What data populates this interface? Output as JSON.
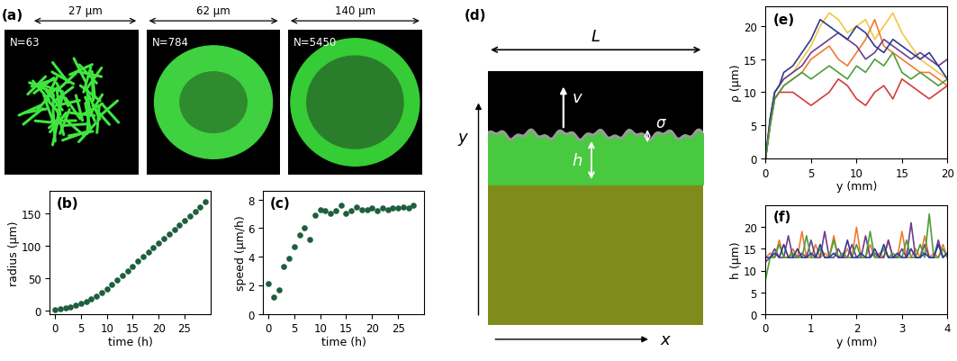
{
  "images": {
    "panel": "(a)",
    "items": [
      {
        "width_label": "27 µm",
        "count_label": "N=63"
      },
      {
        "width_label": "62 µm",
        "count_label": "N=784"
      },
      {
        "width_label": "140 µm",
        "count_label": "N=5450"
      }
    ]
  },
  "diagram": {
    "panel": "(d)",
    "labels": {
      "width": "L",
      "velocity": "v",
      "roughness": "σ",
      "thickness": "h",
      "vertical": "y",
      "horizontal": "x"
    }
  },
  "chart_data": [
    {
      "type": "scatter",
      "panel": "(b)",
      "xlabel": "time (h)",
      "ylabel": "radius (µm)",
      "color": "#1d5e3c",
      "x": [
        0,
        1,
        2,
        3,
        4,
        5,
        6,
        7,
        8,
        9,
        10,
        11,
        12,
        13,
        14,
        15,
        16,
        17,
        18,
        19,
        20,
        21,
        22,
        23,
        24,
        25,
        26,
        27,
        28,
        29
      ],
      "values": [
        2,
        3,
        4,
        6,
        8,
        11,
        14,
        18,
        23,
        28,
        34,
        41,
        48,
        55,
        62,
        69,
        76,
        83,
        90,
        97,
        104,
        111,
        118,
        125,
        132,
        139,
        146,
        153,
        160,
        168
      ],
      "xlim": [
        -1,
        30
      ],
      "xticks": [
        0,
        5,
        10,
        15,
        20,
        25
      ],
      "ylim": [
        -5,
        185
      ],
      "yticks": [
        0,
        50,
        100,
        150
      ]
    },
    {
      "type": "scatter",
      "panel": "(c)",
      "xlabel": "time (h)",
      "ylabel": "speed (µm/h)",
      "color": "#1d5e3c",
      "x": [
        0,
        1,
        2,
        3,
        4,
        5,
        6,
        7,
        8,
        9,
        10,
        11,
        12,
        13,
        14,
        15,
        16,
        17,
        18,
        19,
        20,
        21,
        22,
        23,
        24,
        25,
        26,
        27,
        28
      ],
      "values": [
        2.1,
        1.2,
        1.7,
        3.3,
        3.9,
        4.7,
        5.5,
        6.0,
        5.2,
        6.9,
        7.3,
        7.2,
        7.0,
        7.2,
        7.6,
        7.0,
        7.2,
        7.5,
        7.3,
        7.3,
        7.4,
        7.2,
        7.4,
        7.3,
        7.4,
        7.4,
        7.5,
        7.4,
        7.6
      ],
      "xlim": [
        -1,
        30
      ],
      "xticks": [
        0,
        5,
        10,
        15,
        20,
        25
      ],
      "ylim": [
        0,
        8.6
      ],
      "yticks": [
        0,
        2,
        4,
        6,
        8
      ]
    },
    {
      "type": "line",
      "panel": "(e)",
      "xlabel": "y (mm)",
      "ylabel": "ρ (µm)",
      "x": [
        0,
        0.5,
        1,
        1.5,
        2,
        3,
        4,
        5,
        6,
        7,
        8,
        9,
        10,
        11,
        12,
        13,
        14,
        15,
        16,
        17,
        18,
        19,
        20
      ],
      "series": [
        {
          "color": "#f2c744",
          "values": [
            0,
            6,
            10,
            11,
            12,
            13,
            15,
            17,
            20,
            22,
            21,
            19,
            20,
            21,
            18,
            20,
            22,
            19,
            17,
            15,
            14,
            13,
            12
          ]
        },
        {
          "color": "#ee7d2f",
          "values": [
            0,
            5,
            9,
            10,
            11,
            12,
            13,
            15,
            16,
            17,
            15,
            14,
            16,
            18,
            21,
            17,
            16,
            15,
            14,
            13,
            13,
            12,
            11
          ]
        },
        {
          "color": "#d63a3a",
          "values": [
            0,
            5,
            9,
            10,
            10,
            10,
            9,
            8,
            9,
            10,
            12,
            11,
            9,
            8,
            10,
            11,
            9,
            12,
            11,
            10,
            9,
            10,
            11
          ]
        },
        {
          "color": "#6b3f8f",
          "values": [
            0,
            6,
            10,
            11,
            12,
            13,
            14,
            16,
            17,
            18,
            19,
            18,
            17,
            15,
            16,
            18,
            17,
            16,
            15,
            16,
            15,
            14,
            15
          ]
        },
        {
          "color": "#2e3c8f",
          "values": [
            0,
            6,
            10,
            11,
            13,
            14,
            16,
            18,
            21,
            20,
            19,
            18,
            20,
            19,
            17,
            16,
            18,
            17,
            16,
            15,
            16,
            14,
            12
          ]
        },
        {
          "color": "#4d9e3a",
          "values": [
            0,
            5,
            9,
            10,
            11,
            12,
            13,
            12,
            13,
            14,
            13,
            12,
            14,
            13,
            15,
            14,
            16,
            13,
            12,
            13,
            12,
            11,
            12
          ]
        }
      ],
      "xlim": [
        0,
        20
      ],
      "xticks": [
        0,
        5,
        10,
        15,
        20
      ],
      "ylim": [
        0,
        23
      ],
      "yticks": [
        0,
        5,
        10,
        15,
        20
      ]
    },
    {
      "type": "line",
      "panel": "(f)",
      "xlabel": "y (mm)",
      "ylabel": "h (µm)",
      "x": [
        0,
        0.1,
        0.2,
        0.3,
        0.4,
        0.5,
        0.6,
        0.7,
        0.8,
        0.9,
        1,
        1.1,
        1.2,
        1.3,
        1.4,
        1.5,
        1.6,
        1.7,
        1.8,
        1.9,
        2,
        2.1,
        2.2,
        2.3,
        2.4,
        2.5,
        2.6,
        2.7,
        2.8,
        2.9,
        3,
        3.1,
        3.2,
        3.3,
        3.4,
        3.5,
        3.6,
        3.7,
        3.8,
        3.9,
        4
      ],
      "series": [
        {
          "color": "#ee7d2f",
          "values": [
            13,
            14,
            13,
            17,
            13,
            13,
            15,
            13,
            19,
            13,
            13,
            16,
            13,
            14,
            13,
            18,
            13,
            13,
            15,
            13,
            20,
            13,
            13,
            16,
            13,
            14,
            13,
            17,
            13,
            13,
            19,
            13,
            13,
            15,
            13,
            18,
            13,
            14,
            13,
            16,
            13
          ]
        },
        {
          "color": "#6b3f8f",
          "values": [
            12,
            13,
            15,
            13,
            13,
            18,
            13,
            13,
            14,
            13,
            17,
            13,
            13,
            19,
            13,
            13,
            15,
            13,
            13,
            16,
            13,
            13,
            18,
            13,
            14,
            13,
            13,
            17,
            13,
            13,
            15,
            13,
            21,
            13,
            13,
            16,
            13,
            13,
            17,
            13,
            14
          ]
        },
        {
          "color": "#4d9e3a",
          "values": [
            8,
            13,
            13,
            16,
            13,
            13,
            14,
            13,
            13,
            18,
            13,
            13,
            15,
            13,
            13,
            17,
            13,
            14,
            13,
            13,
            16,
            13,
            13,
            19,
            13,
            13,
            15,
            13,
            14,
            13,
            13,
            17,
            13,
            13,
            16,
            13,
            23,
            13,
            13,
            15,
            13
          ]
        },
        {
          "color": "#2e3c8f",
          "values": [
            13,
            13,
            14,
            13,
            16,
            13,
            13,
            15,
            13,
            13,
            14,
            13,
            16,
            13,
            13,
            14,
            13,
            13,
            17,
            13,
            13,
            14,
            13,
            13,
            15,
            13,
            16,
            13,
            13,
            14,
            13,
            13,
            15,
            13,
            13,
            14,
            13,
            13,
            16,
            13,
            14
          ]
        }
      ],
      "xlim": [
        0,
        4
      ],
      "xticks": [
        0,
        1,
        2,
        3,
        4
      ],
      "ylim": [
        0,
        25
      ],
      "yticks": [
        0,
        5,
        10,
        15,
        20
      ]
    }
  ]
}
